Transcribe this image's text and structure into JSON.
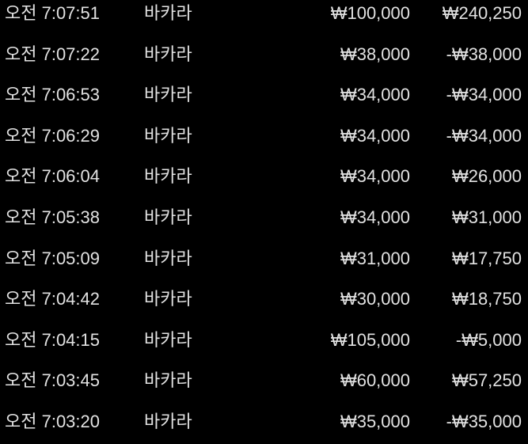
{
  "rows": [
    {
      "time": "오전 7:07:51",
      "game": "바카라",
      "bet": "₩100,000",
      "result": "₩240,250"
    },
    {
      "time": "오전 7:07:22",
      "game": "바카라",
      "bet": "₩38,000",
      "result": "-₩38,000"
    },
    {
      "time": "오전 7:06:53",
      "game": "바카라",
      "bet": "₩34,000",
      "result": "-₩34,000"
    },
    {
      "time": "오전 7:06:29",
      "game": "바카라",
      "bet": "₩34,000",
      "result": "-₩34,000"
    },
    {
      "time": "오전 7:06:04",
      "game": "바카라",
      "bet": "₩34,000",
      "result": "₩26,000"
    },
    {
      "time": "오전 7:05:38",
      "game": "바카라",
      "bet": "₩34,000",
      "result": "₩31,000"
    },
    {
      "time": "오전 7:05:09",
      "game": "바카라",
      "bet": "₩31,000",
      "result": "₩17,750"
    },
    {
      "time": "오전 7:04:42",
      "game": "바카라",
      "bet": "₩30,000",
      "result": "₩18,750"
    },
    {
      "time": "오전 7:04:15",
      "game": "바카라",
      "bet": "₩105,000",
      "result": "-₩5,000"
    },
    {
      "time": "오전 7:03:45",
      "game": "바카라",
      "bet": "₩60,000",
      "result": "₩57,250"
    },
    {
      "time": "오전 7:03:20",
      "game": "바카라",
      "bet": "₩35,000",
      "result": "-₩35,000"
    }
  ]
}
